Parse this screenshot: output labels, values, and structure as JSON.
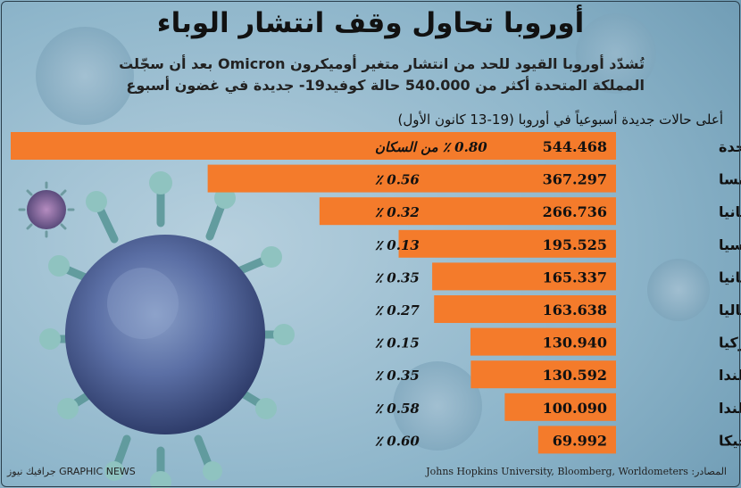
{
  "title": "أوروبا تحاول وقف انتشار الوباء",
  "subtitle": "تُشدّد أوروبا القيود للحد من انتشار متغير أوميكرون Omicron بعد أن سجّلت المملكة المتحدة أكثر من 540.000 حالة كوفيد19- جديدة في غضون أسبوع",
  "chart_heading": "أعلى حالات جديدة أسبوعياً في أوروبا (19-13 كانون الأول)",
  "footer": {
    "source": "المصادر: Johns Hopkins University, Bloomberg, Worldometers",
    "brand": "GRAPHIC NEWS جرافيك نيوز"
  },
  "colors": {
    "bar": "#f47b2b",
    "background": "#8ab4c9",
    "virus": "#4f7f86"
  },
  "chart_data": {
    "type": "bar",
    "orientation": "horizontal",
    "categories": [
      "المملكة المتحدة",
      "فرنسا",
      "ألمانيا",
      "روسيا",
      "إسبانيا",
      "إيطاليا",
      "تركيا",
      "بولندا",
      "هولندا",
      "بلجيكا"
    ],
    "values": [
      544468,
      367297,
      266736,
      195525,
      165337,
      163638,
      130940,
      130592,
      100090,
      69992
    ],
    "value_labels": [
      "544.468",
      "367.297",
      "266.736",
      "195.525",
      "165.337",
      "163.638",
      "130.940",
      "130.592",
      "100.090",
      "69.992"
    ],
    "percent_labels": [
      "0.80 ٪ من السكان",
      "0.56 ٪",
      "0.32 ٪",
      "0.13 ٪",
      "0.35 ٪",
      "0.27 ٪",
      "0.15 ٪",
      "0.35 ٪",
      "0.58 ٪",
      "0.60 ٪"
    ],
    "title": "أعلى حالات جديدة أسبوعياً في أوروبا (19-13 كانون الأول)",
    "xlabel": "",
    "ylabel": "",
    "xlim": [
      0,
      544468
    ]
  }
}
